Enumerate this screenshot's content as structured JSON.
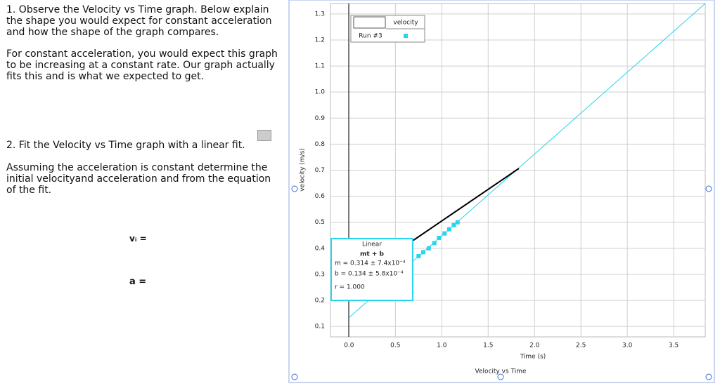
{
  "questions": {
    "q1": "1. Observe the Velocity vs Time graph.  Below explain the shape you would expect for constant acceleration and how the shape of the graph compares.",
    "a1": "For constant acceleration, you would expect this graph to be increasing at a constant rate. Our graph actually fits this and is what we expected to get.",
    "q2": "2. Fit the Velocity vs Time graph with a linear fit.",
    "q2b": "Assuming the acceleration is constant determine the initial velocityand acceleration and from the equation of the fit.",
    "vi": "vᵢ =",
    "a": "a ="
  },
  "chart_data": {
    "type": "scatter",
    "title": "Velocity vs Time",
    "x_label": "Time (s)",
    "y_label": "velocity (m/s)",
    "xlim": [
      -0.2,
      3.84
    ],
    "ylim": [
      0.06,
      1.34
    ],
    "xticks": [
      {
        "value": 0,
        "label": "0.0"
      },
      0.5,
      {
        "value": 1,
        "label": "1.0"
      },
      1.5,
      {
        "value": 2,
        "label": "2.0"
      },
      2.5,
      {
        "value": 3,
        "label": "3.0"
      },
      3.5
    ],
    "yticks": [
      0.1,
      0.2,
      0.3,
      0.4,
      0.5,
      0.6,
      0.7,
      0.8,
      0.9,
      {
        "value": 1,
        "label": "1.0"
      },
      1.1,
      1.2,
      1.3
    ],
    "grid": true,
    "legend": {
      "column": "velocity",
      "row": "Run #3"
    },
    "series": [
      {
        "name": "velocity",
        "color": "#29d4ee",
        "x": [
          0.75,
          0.8,
          0.86,
          0.92,
          0.97,
          1.03,
          1.08,
          1.13,
          1.17
        ],
        "values": [
          0.37,
          0.385,
          0.4,
          0.42,
          0.44,
          0.457,
          0.473,
          0.489,
          0.5
        ]
      }
    ],
    "fit": {
      "title": "Linear",
      "equation": "mt + b",
      "lines": [
        "m = 0.314 ± 7.4x10⁻⁴",
        "b = 0.134 ± 5.8x10⁻⁴",
        "r = 1.000"
      ],
      "color": "#29d4ee",
      "x": [
        0,
        3.84
      ],
      "values": [
        0.134,
        1.34
      ]
    }
  }
}
